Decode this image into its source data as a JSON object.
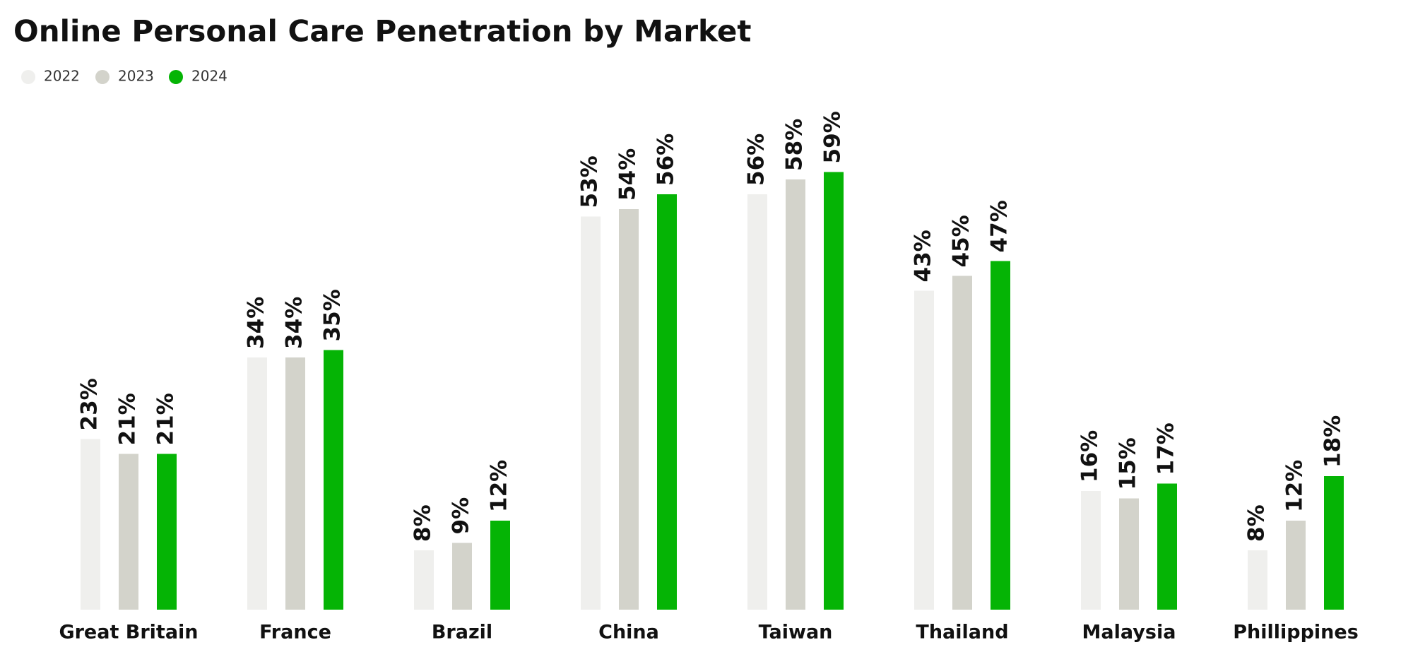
{
  "chart_data": {
    "type": "bar",
    "title": "Online Personal Care Penetration by Market",
    "categories": [
      "Great Britain",
      "France",
      "Brazil",
      "China",
      "Taiwan",
      "Thailand",
      "Malaysia",
      "Phillippines"
    ],
    "series": [
      {
        "name": "2022",
        "color": "#efefed",
        "values": [
          23,
          34,
          8,
          53,
          56,
          43,
          16,
          8
        ],
        "value_labels": [
          "23%",
          "34%",
          "8%",
          "53%",
          "56%",
          "43%",
          "16%",
          "8%"
        ]
      },
      {
        "name": "2023",
        "color": "#d3d3cb",
        "values": [
          21,
          34,
          9,
          54,
          58,
          45,
          15,
          12
        ],
        "value_labels": [
          "21%",
          "34%",
          "9%",
          "54%",
          "58%",
          "45%",
          "15%",
          "12%"
        ]
      },
      {
        "name": "2024",
        "color": "#05b405",
        "values": [
          21,
          35,
          12,
          56,
          59,
          47,
          17,
          18
        ],
        "value_labels": [
          "21%",
          "35%",
          "12%",
          "56%",
          "59%",
          "47%",
          "17%",
          "18%"
        ]
      }
    ]
  }
}
